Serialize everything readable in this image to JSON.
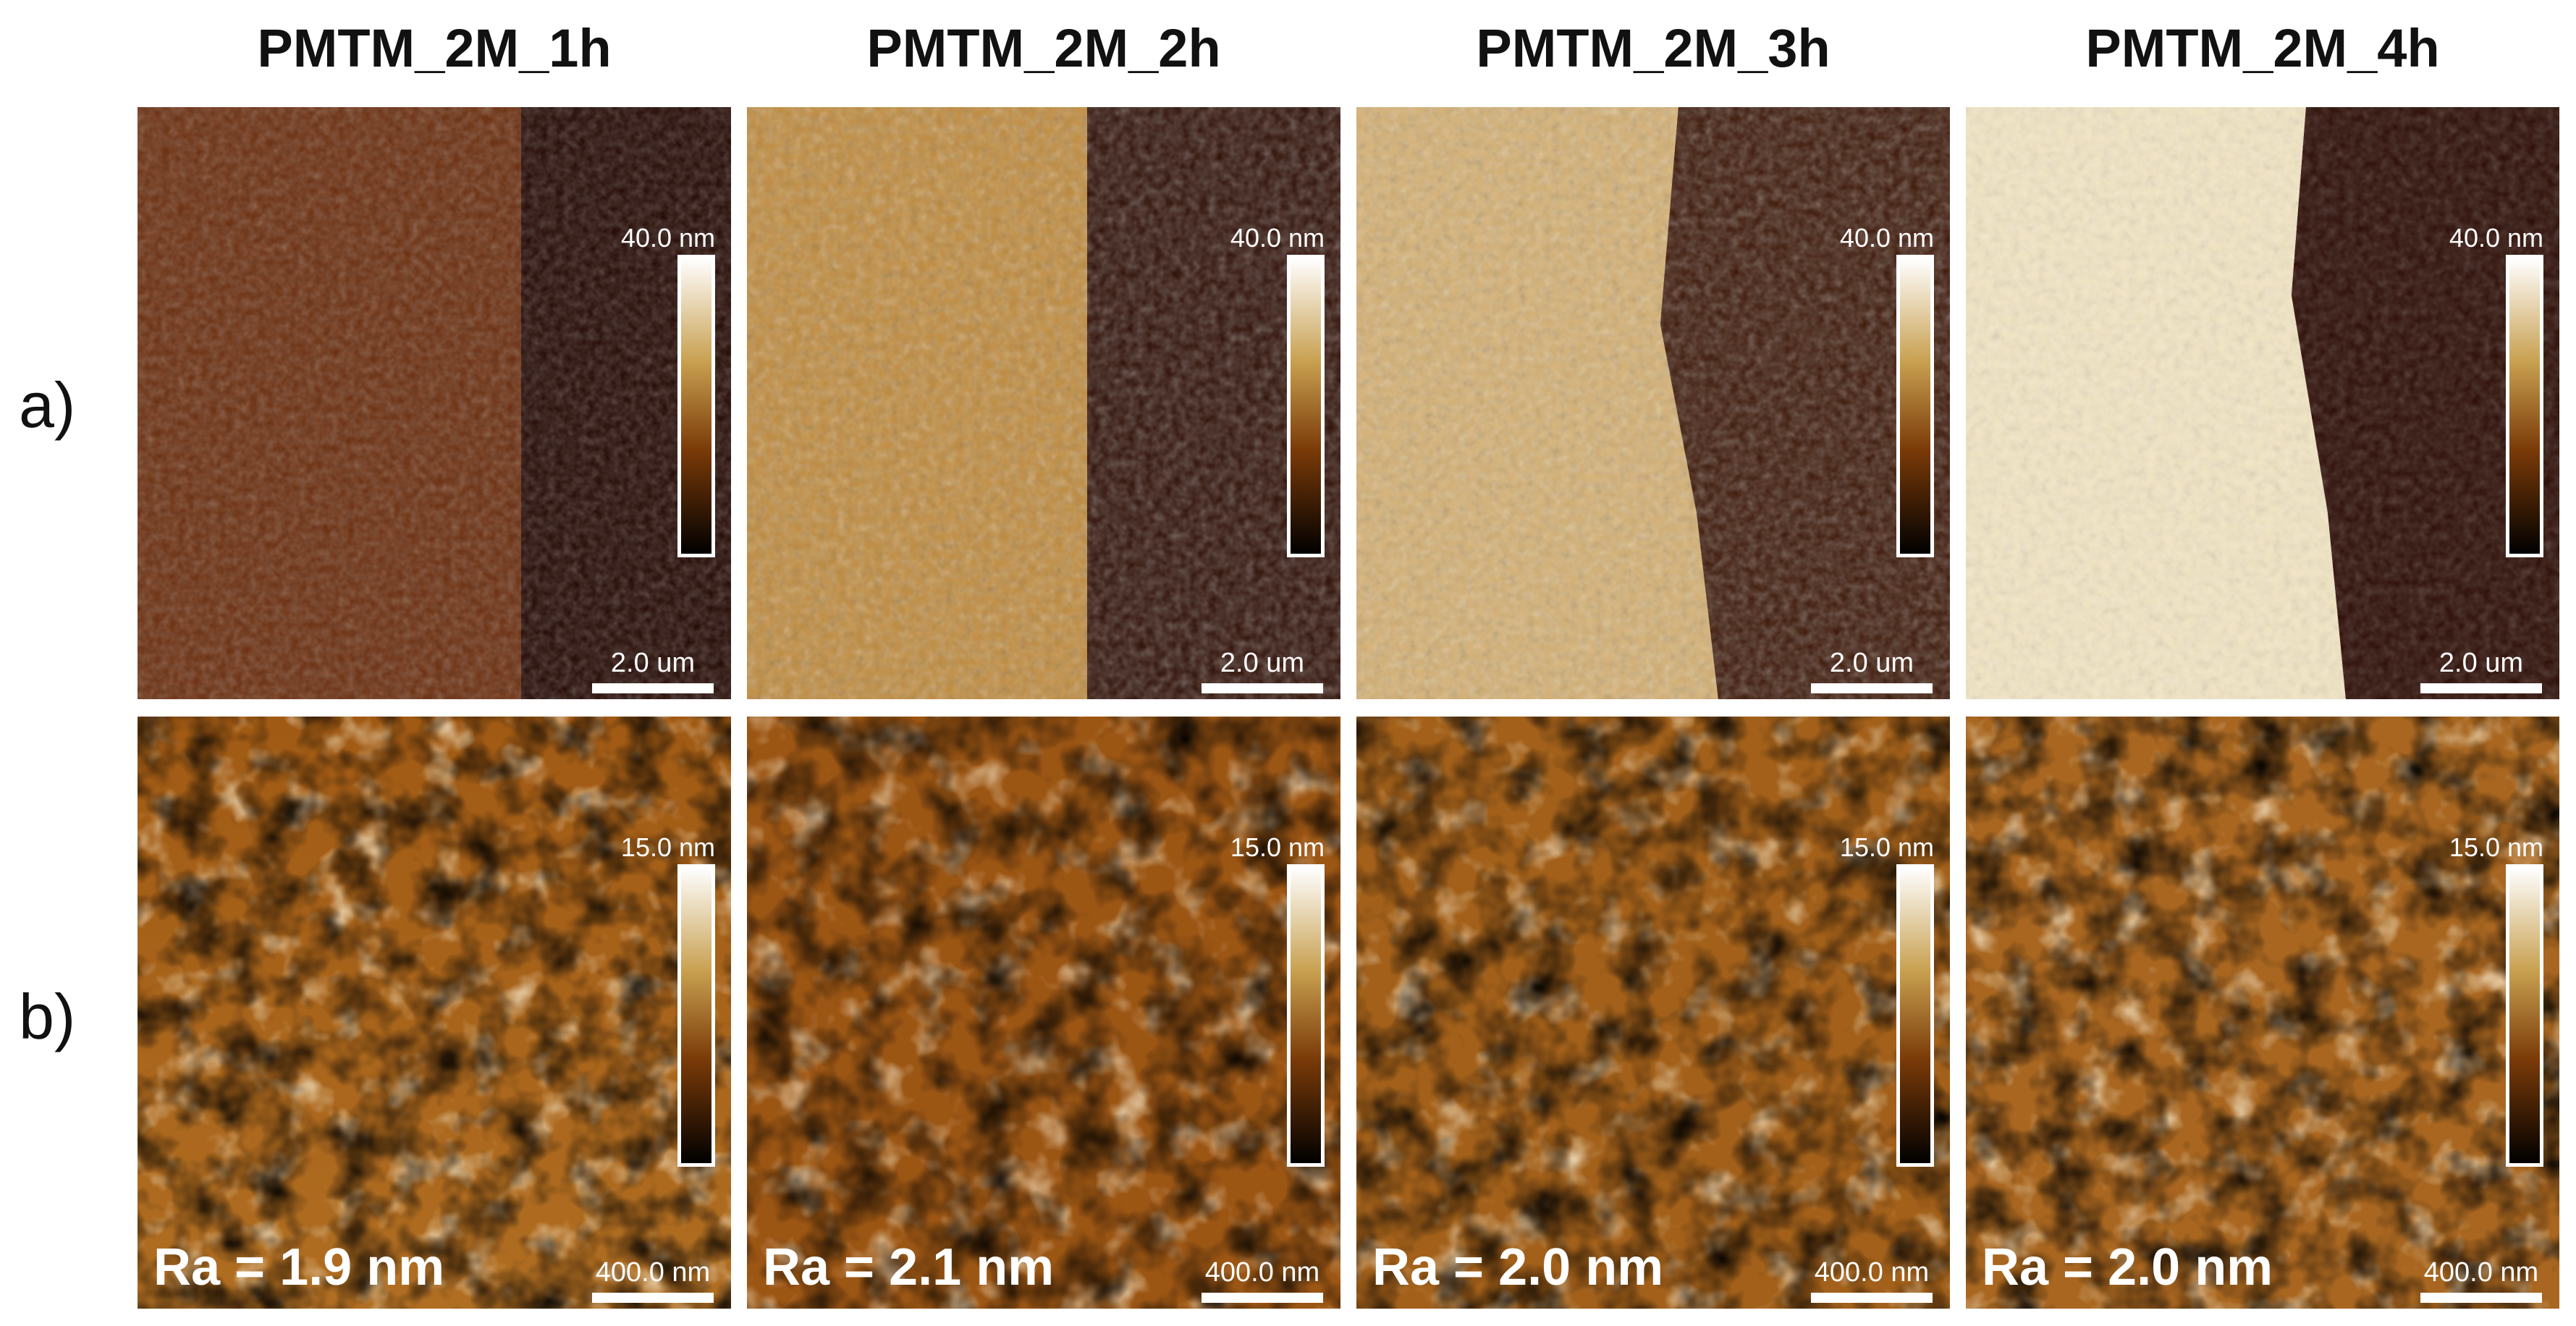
{
  "columns": [
    "PMTM_2M_1h",
    "PMTM_2M_2h",
    "PMTM_2M_3h",
    "PMTM_2M_4h"
  ],
  "rows": [
    {
      "label": "a)",
      "colorbar_max": "40.0 nm",
      "scale_bar": "2.0 um"
    },
    {
      "label": "b)",
      "colorbar_max": "15.0 nm",
      "scale_bar": "400.0 nm"
    }
  ],
  "roughness": [
    "Ra = 1.9 nm",
    "Ra = 2.1 nm",
    "Ra = 2.0 nm",
    "Ra = 2.0 nm"
  ],
  "colors": {
    "afm_dark": "#0a0200",
    "afm_mid": "#8a4a0c",
    "afm_light": "#f8ecc8",
    "overlay_text": "#ffffff"
  }
}
